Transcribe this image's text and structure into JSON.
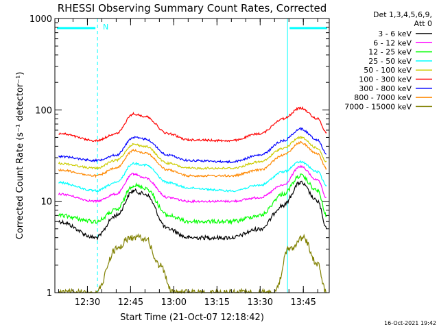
{
  "chart_data": {
    "type": "line",
    "title": "RHESSI Observing Summary Count Rates, Corrected",
    "xlabel": "Start Time (21-Oct-07 12:18:42)",
    "ylabel": "Corrected Count Rate (s⁻¹ detector⁻¹)",
    "yscale": "log",
    "xlim": [
      "12:18:42",
      "13:54:00"
    ],
    "ylim": [
      1,
      1000
    ],
    "x_ticks": [
      "12:30",
      "12:45",
      "13:00",
      "13:15",
      "13:30",
      "13:45"
    ],
    "y_ticks": [
      "1",
      "10",
      "100",
      "1000"
    ],
    "legend_header": [
      "Det 1,3,4,5,6,9,",
      "Att 0"
    ],
    "legend_position": "right",
    "timestamp": "16-Oct-2021 19:42",
    "flag_label": "N",
    "night_intervals": [
      {
        "start": "12:18:42",
        "end": "12:33:30"
      },
      {
        "start": "13:39:30",
        "end": "13:54:00"
      }
    ],
    "series": [
      {
        "name": "3 - 6 keV",
        "color": "#000000",
        "x": [
          "12:20",
          "12:33",
          "12:40",
          "12:46",
          "12:50",
          "12:58",
          "13:05",
          "13:20",
          "13:30",
          "13:38",
          "13:44",
          "13:50",
          "13:53"
        ],
        "y": [
          6,
          4,
          7,
          13,
          12,
          5,
          4,
          4,
          5,
          9,
          16,
          10,
          5
        ]
      },
      {
        "name": "6 - 12 keV",
        "color": "#ff00ff",
        "x": [
          "12:20",
          "12:33",
          "12:40",
          "12:46",
          "12:50",
          "12:58",
          "13:05",
          "13:20",
          "13:30",
          "13:38",
          "13:44",
          "13:50",
          "13:53"
        ],
        "y": [
          12,
          10,
          12,
          20,
          18,
          11,
          10,
          10,
          11,
          15,
          24,
          17,
          11
        ]
      },
      {
        "name": "12 - 25 keV",
        "color": "#00ff00",
        "x": [
          "12:20",
          "12:33",
          "12:40",
          "12:46",
          "12:50",
          "12:58",
          "13:05",
          "13:20",
          "13:30",
          "13:38",
          "13:44",
          "13:50",
          "13:53"
        ],
        "y": [
          7,
          6,
          8,
          15,
          14,
          7,
          6,
          6,
          7,
          12,
          19,
          13,
          7
        ]
      },
      {
        "name": "25 - 50 keV",
        "color": "#00ffff",
        "x": [
          "12:20",
          "12:33",
          "12:40",
          "12:46",
          "12:50",
          "12:58",
          "13:05",
          "13:20",
          "13:30",
          "13:38",
          "13:44",
          "13:50",
          "13:53"
        ],
        "y": [
          16,
          13,
          16,
          26,
          25,
          16,
          14,
          13,
          15,
          21,
          27,
          21,
          15
        ]
      },
      {
        "name": "50 - 100 keV",
        "color": "#cccc00",
        "x": [
          "12:20",
          "12:33",
          "12:40",
          "12:46",
          "12:50",
          "12:58",
          "13:05",
          "13:20",
          "13:30",
          "13:38",
          "13:44",
          "13:50",
          "13:53"
        ],
        "y": [
          26,
          23,
          28,
          42,
          40,
          26,
          23,
          23,
          27,
          38,
          50,
          38,
          27
        ]
      },
      {
        "name": "100 - 300 keV",
        "color": "#ff0000",
        "x": [
          "12:20",
          "12:33",
          "12:40",
          "12:46",
          "12:50",
          "12:58",
          "13:05",
          "13:20",
          "13:30",
          "13:38",
          "13:44",
          "13:50",
          "13:53"
        ],
        "y": [
          55,
          46,
          55,
          90,
          85,
          55,
          47,
          46,
          55,
          80,
          105,
          80,
          57
        ]
      },
      {
        "name": "300 - 800 keV",
        "color": "#0000ff",
        "x": [
          "12:20",
          "12:33",
          "12:40",
          "12:46",
          "12:50",
          "12:58",
          "13:05",
          "13:20",
          "13:30",
          "13:38",
          "13:44",
          "13:50",
          "13:53"
        ],
        "y": [
          31,
          28,
          32,
          50,
          48,
          32,
          28,
          27,
          32,
          46,
          62,
          47,
          33
        ]
      },
      {
        "name": "800 - 7000 keV",
        "color": "#ff8800",
        "x": [
          "12:20",
          "12:33",
          "12:40",
          "12:46",
          "12:50",
          "12:58",
          "13:05",
          "13:20",
          "13:30",
          "13:38",
          "13:44",
          "13:50",
          "13:53"
        ],
        "y": [
          22,
          19,
          23,
          36,
          34,
          22,
          19,
          19,
          22,
          32,
          44,
          33,
          23
        ]
      },
      {
        "name": "7000 - 15000 keV",
        "color": "#808000",
        "x": [
          "12:20",
          "12:33",
          "12:40",
          "12:45",
          "12:50",
          "12:55",
          "13:00",
          "13:15",
          "13:35",
          "13:40",
          "13:45",
          "13:50",
          "13:53"
        ],
        "y": [
          1,
          1,
          3,
          4,
          4,
          2,
          1,
          1,
          1,
          3,
          4,
          2,
          1
        ]
      }
    ]
  }
}
